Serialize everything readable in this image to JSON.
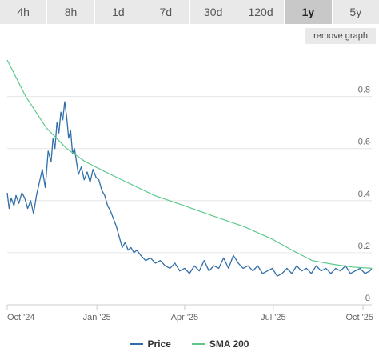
{
  "tabs": [
    {
      "label": "4h",
      "active": false
    },
    {
      "label": "8h",
      "active": false
    },
    {
      "label": "1d",
      "active": false
    },
    {
      "label": "7d",
      "active": false
    },
    {
      "label": "30d",
      "active": false
    },
    {
      "label": "120d",
      "active": false
    },
    {
      "label": "1y",
      "active": true
    },
    {
      "label": "5y",
      "active": false
    }
  ],
  "remove_graph_label": "remove graph",
  "colors": {
    "price": "#2f6ea8",
    "sma": "#5cc98a",
    "grid": "#e6e6e6",
    "axis": "#cccccc"
  },
  "chart_data": {
    "type": "line",
    "title": "",
    "xlabel": "",
    "ylabel": "",
    "x_tick_labels": [
      "Oct '24",
      "Jan '25",
      "Apr '25",
      "Jul '25",
      "Oct '25"
    ],
    "x_tick_dates": [
      "2024-10-01",
      "2025-01-01",
      "2025-04-01",
      "2025-07-01",
      "2025-10-01"
    ],
    "xlim": [
      "2024-10-01",
      "2025-10-10"
    ],
    "y_ticks": [
      0,
      0.2,
      0.4,
      0.6,
      0.8
    ],
    "y_tick_labels": [
      "0",
      "0.2",
      "0.4",
      "0.6",
      "0.8"
    ],
    "ylim": [
      0,
      0.98
    ],
    "y_axis_side": "right",
    "grid": true,
    "legend_position": "bottom-center",
    "series": [
      {
        "name": "Price",
        "x": [
          "2024-10-01",
          "2024-10-03",
          "2024-10-05",
          "2024-10-08",
          "2024-10-10",
          "2024-10-13",
          "2024-10-16",
          "2024-10-19",
          "2024-10-22",
          "2024-10-25",
          "2024-10-28",
          "2024-10-31",
          "2024-11-03",
          "2024-11-06",
          "2024-11-09",
          "2024-11-12",
          "2024-11-15",
          "2024-11-17",
          "2024-11-19",
          "2024-11-21",
          "2024-11-23",
          "2024-11-25",
          "2024-11-27",
          "2024-11-29",
          "2024-12-01",
          "2024-12-03",
          "2024-12-05",
          "2024-12-07",
          "2024-12-09",
          "2024-12-11",
          "2024-12-13",
          "2024-12-16",
          "2024-12-19",
          "2024-12-22",
          "2024-12-25",
          "2024-12-28",
          "2024-12-31",
          "2025-01-03",
          "2025-01-06",
          "2025-01-09",
          "2025-01-12",
          "2025-01-15",
          "2025-01-18",
          "2025-01-21",
          "2025-01-24",
          "2025-01-27",
          "2025-01-30",
          "2025-02-02",
          "2025-02-05",
          "2025-02-08",
          "2025-02-11",
          "2025-02-15",
          "2025-02-20",
          "2025-02-25",
          "2025-03-02",
          "2025-03-07",
          "2025-03-12",
          "2025-03-17",
          "2025-03-22",
          "2025-03-27",
          "2025-04-01",
          "2025-04-06",
          "2025-04-11",
          "2025-04-16",
          "2025-04-21",
          "2025-04-26",
          "2025-05-01",
          "2025-05-06",
          "2025-05-11",
          "2025-05-16",
          "2025-05-21",
          "2025-05-26",
          "2025-05-31",
          "2025-06-05",
          "2025-06-10",
          "2025-06-15",
          "2025-06-20",
          "2025-06-25",
          "2025-06-30",
          "2025-07-05",
          "2025-07-10",
          "2025-07-15",
          "2025-07-20",
          "2025-07-25",
          "2025-07-30",
          "2025-08-04",
          "2025-08-09",
          "2025-08-14",
          "2025-08-19",
          "2025-08-24",
          "2025-08-29",
          "2025-09-03",
          "2025-09-08",
          "2025-09-13",
          "2025-09-18",
          "2025-09-23",
          "2025-09-28",
          "2025-10-03",
          "2025-10-08",
          "2025-10-10"
        ],
        "values": [
          0.43,
          0.37,
          0.41,
          0.38,
          0.42,
          0.39,
          0.43,
          0.41,
          0.37,
          0.4,
          0.35,
          0.42,
          0.47,
          0.52,
          0.45,
          0.59,
          0.55,
          0.64,
          0.6,
          0.7,
          0.66,
          0.74,
          0.71,
          0.78,
          0.72,
          0.64,
          0.67,
          0.58,
          0.6,
          0.55,
          0.5,
          0.53,
          0.48,
          0.51,
          0.47,
          0.52,
          0.49,
          0.48,
          0.44,
          0.42,
          0.38,
          0.36,
          0.33,
          0.3,
          0.26,
          0.22,
          0.24,
          0.21,
          0.22,
          0.2,
          0.21,
          0.19,
          0.17,
          0.18,
          0.16,
          0.17,
          0.15,
          0.14,
          0.16,
          0.13,
          0.14,
          0.12,
          0.15,
          0.13,
          0.17,
          0.13,
          0.15,
          0.14,
          0.18,
          0.14,
          0.19,
          0.16,
          0.14,
          0.15,
          0.13,
          0.15,
          0.12,
          0.13,
          0.14,
          0.11,
          0.12,
          0.14,
          0.12,
          0.15,
          0.13,
          0.14,
          0.12,
          0.15,
          0.13,
          0.14,
          0.12,
          0.14,
          0.13,
          0.15,
          0.12,
          0.13,
          0.14,
          0.12,
          0.13,
          0.14
        ]
      },
      {
        "name": "SMA 200",
        "x": [
          "2024-10-01",
          "2024-10-20",
          "2024-11-10",
          "2024-12-01",
          "2024-12-20",
          "2025-01-10",
          "2025-02-01",
          "2025-03-01",
          "2025-04-01",
          "2025-05-01",
          "2025-06-01",
          "2025-07-01",
          "2025-07-20",
          "2025-08-10",
          "2025-09-01",
          "2025-09-20",
          "2025-10-10"
        ],
        "values": [
          0.94,
          0.8,
          0.68,
          0.6,
          0.55,
          0.51,
          0.47,
          0.42,
          0.38,
          0.34,
          0.3,
          0.25,
          0.21,
          0.17,
          0.155,
          0.145,
          0.14
        ]
      }
    ]
  }
}
